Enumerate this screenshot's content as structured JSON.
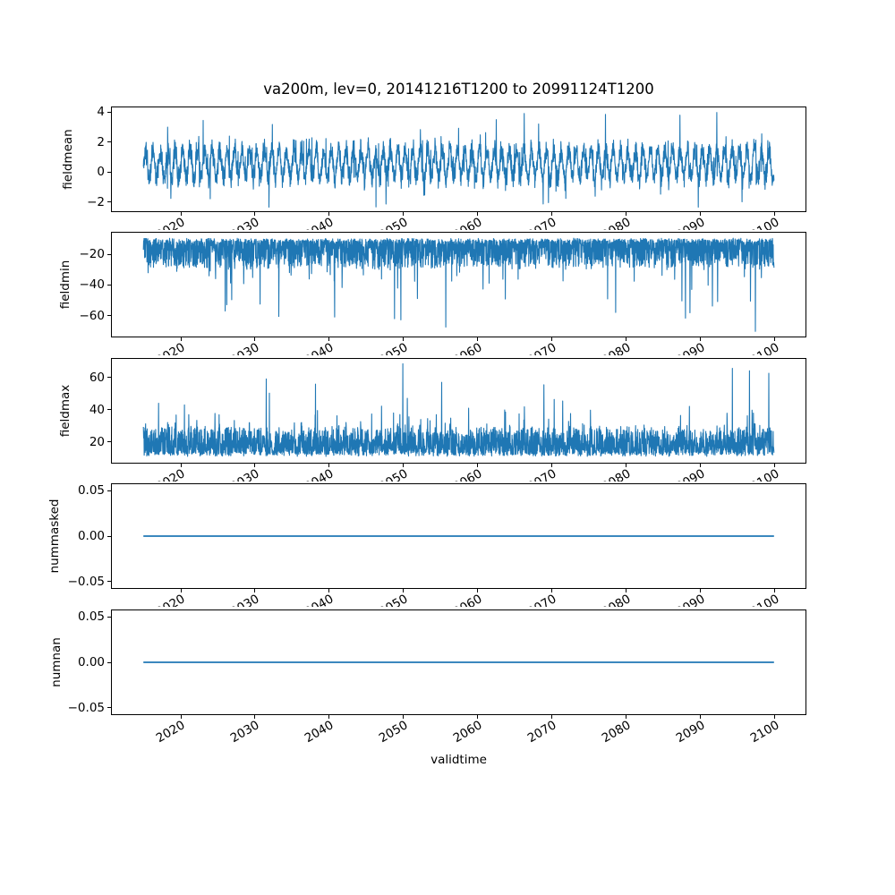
{
  "chart_data": {
    "type": "line",
    "title": "va200m, lev=0, 20141216T1200 to 20991124T1200",
    "xlabel": "validtime",
    "line_color": "#1f77b4",
    "frame_color": "#000000",
    "legend": "none",
    "grid": false,
    "x": {
      "data_start": 2014.96,
      "data_end": 2099.9,
      "lim": [
        2010.71,
        2104.15
      ],
      "ticks": [
        2020,
        2030,
        2040,
        2050,
        2060,
        2070,
        2080,
        2090,
        2100
      ],
      "tick_labels": [
        "2020",
        "2030",
        "2040",
        "2050",
        "2060",
        "2070",
        "2080",
        "2090",
        "2100"
      ],
      "tick_rotation_deg": 30
    },
    "subplots": [
      {
        "ylabel": "fieldmean",
        "ylim": [
          -2.62,
          4.32
        ],
        "ytick_values": [
          -2,
          0,
          2,
          4
        ],
        "ytick_labels": [
          "−2",
          "0",
          "2",
          "4"
        ],
        "series": {
          "kind": "seasonal-noise",
          "n": 3200,
          "seed": 11,
          "base": 0.55,
          "season_amp": 0.95,
          "noise": 0.9,
          "tail_prob": 0.05,
          "tail": 2.2,
          "clip": [
            -2.35,
            3.98
          ],
          "force": [
            {
              "t": 2092.2,
              "v": 3.98
            },
            {
              "t": 2046.3,
              "v": -2.33
            },
            {
              "t": 2023.0,
              "v": 3.45
            },
            {
              "t": 2062.5,
              "v": 3.5
            }
          ]
        }
      },
      {
        "ylabel": "fieldmin",
        "ylim": [
          -73.6,
          -5.9
        ],
        "ytick_values": [
          -60,
          -40,
          -20
        ],
        "ytick_labels": [
          "−60",
          "−40",
          "−20"
        ],
        "series": {
          "kind": "band-spikes",
          "n": 3200,
          "seed": 22,
          "dir": -1,
          "edge": -9.5,
          "jitter": 2.5,
          "band": 18,
          "season_amp": 0,
          "spike_prob": 0.025,
          "spike_base": 8,
          "spike_extra": 30,
          "clip": [
            -70.5,
            -9
          ],
          "force": [
            {
              "t": 2097.4,
              "v": -70.3
            },
            {
              "t": 2055.7,
              "v": -67.5
            },
            {
              "t": 2048.8,
              "v": -62.0
            },
            {
              "t": 2033.2,
              "v": -60.5
            }
          ]
        }
      },
      {
        "ylabel": "fieldmax",
        "ylim": [
          7.1,
          71.4
        ],
        "ytick_values": [
          20,
          40,
          60
        ],
        "ytick_labels": [
          "20",
          "40",
          "60"
        ],
        "series": {
          "kind": "band-spikes",
          "n": 3200,
          "seed": 33,
          "dir": 1,
          "edge": 11,
          "jitter": 2.5,
          "band": 16,
          "season_amp": 6,
          "spike_prob": 0.022,
          "spike_base": 6,
          "spike_extra": 28,
          "clip": [
            10,
            68.5
          ],
          "force": [
            {
              "t": 2049.9,
              "v": 68.4
            },
            {
              "t": 2094.3,
              "v": 65.5
            },
            {
              "t": 2096.6,
              "v": 64.0
            },
            {
              "t": 2099.2,
              "v": 62.5
            },
            {
              "t": 2031.5,
              "v": 59.0
            }
          ]
        }
      },
      {
        "ylabel": "nummasked",
        "ylim": [
          -0.057,
          0.057
        ],
        "ytick_values": [
          -0.05,
          0,
          0.05
        ],
        "ytick_labels": [
          "−0.05",
          "0.00",
          "0.05"
        ],
        "series": {
          "kind": "flat",
          "value": 0
        }
      },
      {
        "ylabel": "numnan",
        "ylim": [
          -0.057,
          0.057
        ],
        "ytick_values": [
          -0.05,
          0,
          0.05
        ],
        "ytick_labels": [
          "−0.05",
          "0.00",
          "0.05"
        ],
        "series": {
          "kind": "flat",
          "value": 0
        }
      }
    ]
  }
}
